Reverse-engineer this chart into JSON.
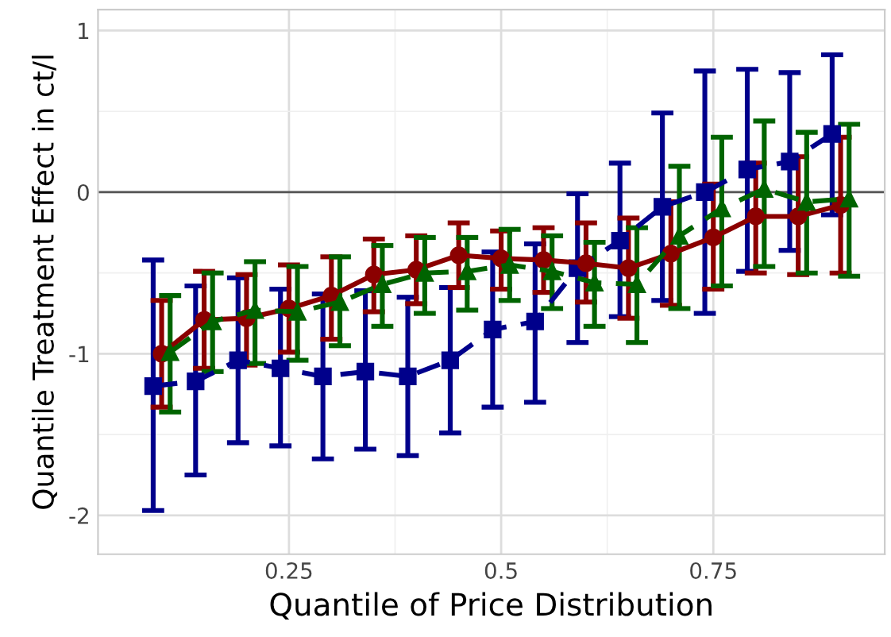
{
  "chart_data": {
    "type": "line",
    "xlabel": "Quantile of Price Distribution",
    "ylabel": "Quantile Treatment Effect in ct/l",
    "xlim": [
      0.025,
      0.952
    ],
    "ylim": [
      -2.24,
      1.13
    ],
    "xticks": [
      0.25,
      0.5,
      0.75
    ],
    "yticks": [
      {
        "value": -2,
        "label": "-2"
      },
      {
        "value": -1,
        "label": "-1"
      },
      0,
      1
    ],
    "grid": true,
    "ref_lines": [
      {
        "axis": "y",
        "value": 0,
        "color": "#555555",
        "line_style": "solid"
      }
    ],
    "series": [
      {
        "color": "#00008b",
        "marker": "square",
        "line_style": "dashed",
        "x": [
          0.09,
          0.14,
          0.19,
          0.24,
          0.29,
          0.34,
          0.39,
          0.44,
          0.49,
          0.54,
          0.59,
          0.64,
          0.69,
          0.74,
          0.79,
          0.84,
          0.89
        ],
        "values": [
          -1.2,
          -1.17,
          -1.04,
          -1.09,
          -1.14,
          -1.11,
          -1.14,
          -1.04,
          -0.85,
          -0.8,
          -0.47,
          -0.3,
          -0.09,
          0.0,
          0.14,
          0.19,
          0.36
        ],
        "errors": [
          [
            -1.97,
            -0.42
          ],
          [
            -1.75,
            -0.58
          ],
          [
            -1.55,
            -0.53
          ],
          [
            -1.57,
            -0.6
          ],
          [
            -1.65,
            -0.63
          ],
          [
            -1.59,
            -0.61
          ],
          [
            -1.63,
            -0.65
          ],
          [
            -1.49,
            -0.59
          ],
          [
            -1.33,
            -0.37
          ],
          [
            -1.3,
            -0.32
          ],
          [
            -0.93,
            -0.01
          ],
          [
            -0.77,
            0.18
          ],
          [
            -0.67,
            0.49
          ],
          [
            -0.75,
            0.75
          ],
          [
            -0.49,
            0.76
          ],
          [
            -0.36,
            0.74
          ],
          [
            -0.14,
            0.85
          ]
        ]
      },
      {
        "color": "#8b0000",
        "marker": "circle",
        "line_style": "solid",
        "x": [
          0.1,
          0.15,
          0.2,
          0.25,
          0.3,
          0.35,
          0.4,
          0.45,
          0.5,
          0.55,
          0.6,
          0.65,
          0.7,
          0.75,
          0.8,
          0.85,
          0.9
        ],
        "values": [
          -1.0,
          -0.79,
          -0.78,
          -0.72,
          -0.64,
          -0.51,
          -0.48,
          -0.39,
          -0.41,
          -0.42,
          -0.44,
          -0.47,
          -0.38,
          -0.28,
          -0.15,
          -0.15,
          -0.08
        ],
        "errors": [
          [
            -1.33,
            -0.67
          ],
          [
            -1.09,
            -0.49
          ],
          [
            -1.07,
            -0.51
          ],
          [
            -0.99,
            -0.45
          ],
          [
            -0.91,
            -0.4
          ],
          [
            -0.74,
            -0.29
          ],
          [
            -0.69,
            -0.27
          ],
          [
            -0.59,
            -0.19
          ],
          [
            -0.6,
            -0.24
          ],
          [
            -0.62,
            -0.22
          ],
          [
            -0.68,
            -0.19
          ],
          [
            -0.78,
            -0.16
          ],
          [
            -0.7,
            -0.06
          ],
          [
            -0.6,
            0.05
          ],
          [
            -0.5,
            0.18
          ],
          [
            -0.51,
            0.22
          ],
          [
            -0.5,
            0.34
          ]
        ]
      },
      {
        "color": "#006400",
        "marker": "triangle",
        "line_style": "dashed",
        "x": [
          0.11,
          0.16,
          0.21,
          0.26,
          0.31,
          0.36,
          0.41,
          0.46,
          0.51,
          0.56,
          0.61,
          0.66,
          0.71,
          0.76,
          0.81,
          0.86,
          0.91
        ],
        "values": [
          -0.99,
          -0.8,
          -0.73,
          -0.74,
          -0.68,
          -0.57,
          -0.5,
          -0.49,
          -0.45,
          -0.49,
          -0.56,
          -0.57,
          -0.27,
          -0.1,
          0.02,
          -0.06,
          -0.04
        ],
        "errors": [
          [
            -1.36,
            -0.64
          ],
          [
            -1.11,
            -0.5
          ],
          [
            -1.06,
            -0.43
          ],
          [
            -1.04,
            -0.46
          ],
          [
            -0.95,
            -0.4
          ],
          [
            -0.83,
            -0.33
          ],
          [
            -0.75,
            -0.28
          ],
          [
            -0.73,
            -0.28
          ],
          [
            -0.67,
            -0.23
          ],
          [
            -0.72,
            -0.27
          ],
          [
            -0.83,
            -0.31
          ],
          [
            -0.93,
            -0.22
          ],
          [
            -0.72,
            0.16
          ],
          [
            -0.58,
            0.34
          ],
          [
            -0.46,
            0.44
          ],
          [
            -0.5,
            0.37
          ],
          [
            -0.52,
            0.42
          ]
        ]
      }
    ]
  }
}
